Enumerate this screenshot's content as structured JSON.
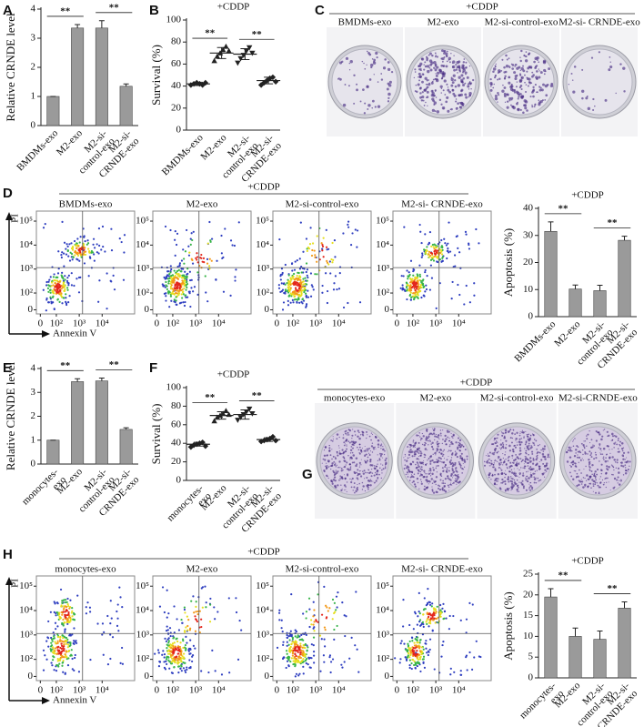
{
  "chart_data": [
    {
      "type": "bar",
      "panel": "A",
      "ylabel": "Relative CRNDE level",
      "categories": [
        "BMDMs-exo",
        "M2-exo",
        "M2-si-control-exo",
        "M2-si-CRNDE-exo"
      ],
      "values": [
        1,
        3.35,
        3.35,
        1.35
      ],
      "errors": [
        0,
        0.12,
        0.25,
        0.08
      ],
      "ylim": [
        0,
        4
      ],
      "yticks": [
        0,
        1,
        2,
        3,
        4
      ],
      "color": "#9a9a9a",
      "significance": [
        {
          "label": "**",
          "between": [
            0,
            1
          ]
        },
        {
          "label": "**",
          "between": [
            2,
            3
          ]
        }
      ]
    },
    {
      "type": "dot",
      "panel": "B",
      "title": "+CDDP",
      "ylabel": "Survival (%)",
      "categories": [
        "BMDMs-exo",
        "M2-exo",
        "M2-si-control-exo",
        "M2-si-CRNDE-exo"
      ],
      "points": [
        [
          41,
          42,
          43,
          42,
          41,
          43
        ],
        [
          63,
          67,
          70,
          73,
          76,
          72
        ],
        [
          61,
          65,
          68,
          72,
          75,
          70
        ],
        [
          41,
          43,
          45,
          47,
          48,
          44
        ]
      ],
      "means": [
        42,
        70,
        69,
        45
      ],
      "errors": [
        1.5,
        5,
        5,
        3
      ],
      "ylim": [
        0,
        100
      ],
      "yticks": [
        0,
        20,
        40,
        60,
        80,
        100
      ],
      "color": "#222222",
      "significance": [
        {
          "label": "**",
          "between": [
            0,
            1
          ]
        },
        {
          "label": "**",
          "between": [
            2,
            3
          ]
        }
      ]
    },
    {
      "type": "image",
      "panel": "C",
      "title": "+CDDP",
      "labels": [
        "BMDMs-exo",
        "M2-exo",
        "M2-si-control-exo",
        "M2-si- CRNDE-exo"
      ]
    },
    {
      "type": "flow",
      "panel": "D",
      "title": "+CDDP",
      "labels": [
        "BMDMs-exo",
        "M2-exo",
        "M2-si-control-exo",
        "M2-si- CRNDE-exo"
      ],
      "xlabel": "Annexin V",
      "ylabel": "PI",
      "scale": "log",
      "xlim": [
        0,
        262144
      ],
      "ylim": [
        0,
        262144
      ],
      "xticks": [
        0,
        {
          "value": 100,
          "label": "10²"
        },
        {
          "value": 1000,
          "label": "10³"
        },
        {
          "value": 10000,
          "label": "10⁴"
        }
      ],
      "yticks": [
        0,
        {
          "value": 100,
          "label": "10²"
        },
        {
          "value": 1000,
          "label": "10³"
        },
        {
          "value": 10000,
          "label": "10⁴"
        },
        {
          "value": 100000,
          "label": "10⁵"
        }
      ]
    },
    {
      "type": "bar",
      "title": "+CDDP",
      "ylabel": "Apoptosis (%)",
      "categories": [
        "BMDMs-exo",
        "M2-exo",
        "M2-si-control-exo",
        "M2-si-CRNDE-exo"
      ],
      "values": [
        31.5,
        10.2,
        9.6,
        28.2
      ],
      "errors": [
        3.5,
        1.5,
        2,
        1.5
      ],
      "ylim": [
        0,
        40
      ],
      "yticks": [
        0,
        10,
        20,
        30,
        40
      ],
      "color": "#9a9a9a",
      "significance": [
        {
          "label": "**",
          "between": [
            0,
            1
          ]
        },
        {
          "label": "**",
          "between": [
            2,
            3
          ]
        }
      ]
    },
    {
      "type": "bar",
      "panel": "E",
      "ylabel": "Relative CRNDE level",
      "categories": [
        "monocytes-exo",
        "M2-exo",
        "M2-si-control-exo",
        "M2-si-CRNDE-exo"
      ],
      "values": [
        1,
        3.45,
        3.48,
        1.45
      ],
      "errors": [
        0,
        0.12,
        0.12,
        0.07
      ],
      "ylim": [
        0,
        4
      ],
      "yticks": [
        0,
        1,
        2,
        3,
        4
      ],
      "color": "#9a9a9a",
      "significance": [
        {
          "label": "**",
          "between": [
            0,
            1
          ]
        },
        {
          "label": "**",
          "between": [
            2,
            3
          ]
        }
      ]
    },
    {
      "type": "dot",
      "panel": "F",
      "title": "+CDDP",
      "ylabel": "Survival (%)",
      "categories": [
        "monocytes-exo",
        "M2-exo",
        "M2-si-control-exo",
        "M2-si-CRNDE-exo"
      ],
      "points": [
        [
          36,
          38,
          39,
          40,
          41,
          37
        ],
        [
          64,
          68,
          70,
          72,
          75,
          71
        ],
        [
          65,
          68,
          71,
          74,
          77,
          72
        ],
        [
          42,
          43,
          44,
          45,
          47,
          43
        ]
      ],
      "means": [
        39,
        70,
        71,
        44
      ],
      "errors": [
        2,
        4,
        5,
        2
      ],
      "ylim": [
        0,
        100
      ],
      "yticks": [
        0,
        20,
        40,
        60,
        80,
        100
      ],
      "color": "#222222",
      "significance": [
        {
          "label": "**",
          "between": [
            0,
            1
          ]
        },
        {
          "label": "**",
          "between": [
            2,
            3
          ]
        }
      ]
    },
    {
      "type": "image",
      "panel": "G",
      "title": "+CDDP",
      "labels": [
        "monocytes-exo",
        "M2-exo",
        "M2-si-control-exo",
        "M2-si-CRNDE-exo"
      ]
    },
    {
      "type": "flow",
      "panel": "H",
      "title": "+CDDP",
      "labels": [
        "monocytes-exo",
        "M2-exo",
        "M2-si-control-exo",
        "M2-si- CRNDE-exo"
      ],
      "xlabel": "Annexin V",
      "ylabel": "PI",
      "scale": "log",
      "xlim": [
        0,
        262144
      ],
      "ylim": [
        0,
        262144
      ],
      "xticks": [
        0,
        {
          "value": 100,
          "label": "10²"
        },
        {
          "value": 1000,
          "label": "10³"
        },
        {
          "value": 10000,
          "label": "10⁴"
        }
      ],
      "yticks": [
        0,
        {
          "value": 100,
          "label": "10²"
        },
        {
          "value": 1000,
          "label": "10³"
        },
        {
          "value": 10000,
          "label": "10⁴"
        },
        {
          "value": 100000,
          "label": "10⁵"
        }
      ]
    },
    {
      "type": "bar",
      "title": "+CDDP",
      "ylabel": "Apoptosis (%)",
      "categories": [
        "monocytes-exo",
        "M2-exo",
        "M2-si-control-exo",
        "M2-si-CRNDE-exo"
      ],
      "values": [
        19.5,
        10,
        9.3,
        16.8
      ],
      "errors": [
        2,
        2,
        2,
        1.5
      ],
      "ylim": [
        0,
        25
      ],
      "yticks": [
        0,
        5,
        10,
        15,
        20,
        25
      ],
      "color": "#9a9a9a",
      "significance": [
        {
          "label": "**",
          "between": [
            0,
            1
          ]
        },
        {
          "label": "**",
          "between": [
            2,
            3
          ]
        }
      ]
    }
  ]
}
